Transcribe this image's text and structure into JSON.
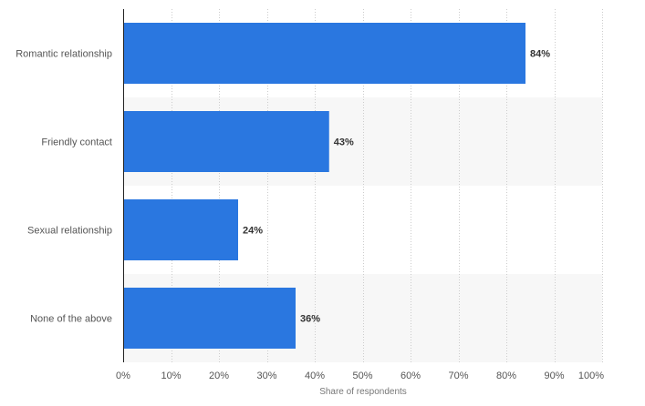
{
  "chart_data": {
    "type": "bar",
    "orientation": "horizontal",
    "categories": [
      "Romantic relationship",
      "Friendly contact",
      "Sexual relationship",
      "None of the above"
    ],
    "values": [
      84,
      43,
      24,
      36
    ],
    "value_suffix": "%",
    "xlabel": "Share of respondents",
    "xlim": [
      0,
      100
    ],
    "xticks": [
      0,
      10,
      20,
      30,
      40,
      50,
      60,
      70,
      80,
      90,
      100
    ],
    "tick_labels": [
      "0%",
      "10%",
      "20%",
      "30%",
      "40%",
      "50%",
      "60%",
      "70%",
      "80%",
      "90%",
      "100%"
    ],
    "grid": true,
    "bar_color": "#2a77e0",
    "stripe_color": "#f7f7f7"
  }
}
